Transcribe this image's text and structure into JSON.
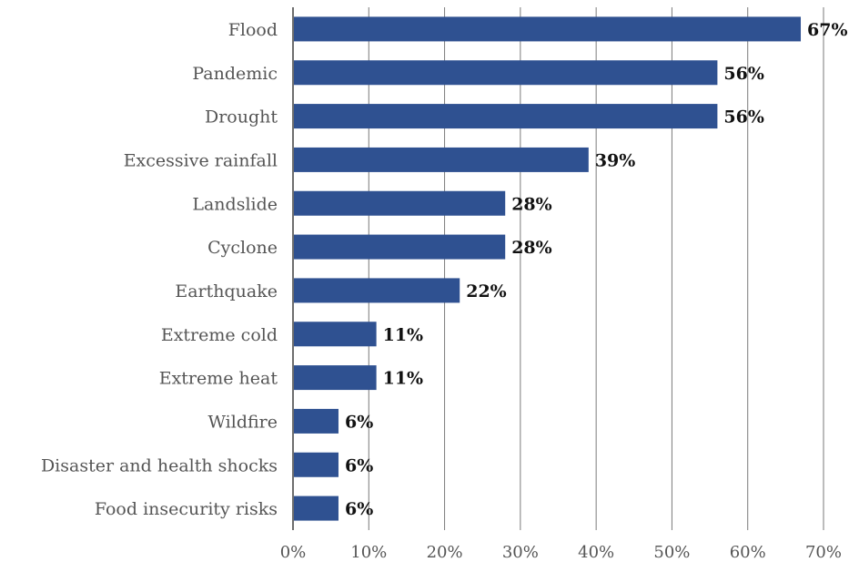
{
  "chart_data": {
    "type": "bar",
    "orientation": "horizontal",
    "title": "",
    "xlabel": "",
    "ylabel": "",
    "categories": [
      "Flood",
      "Pandemic",
      "Drought",
      "Excessive rainfall",
      "Landslide",
      "Cyclone",
      "Earthquake",
      "Extreme cold",
      "Extreme heat",
      "Wildfire",
      "Disaster and health shocks",
      "Food insecurity risks"
    ],
    "values": [
      67,
      56,
      56,
      39,
      28,
      28,
      22,
      11,
      11,
      6,
      6,
      6
    ],
    "data_labels": [
      "67%",
      "56%",
      "56%",
      "39%",
      "28%",
      "28%",
      "22%",
      "11%",
      "11%",
      "6%",
      "6%",
      "6%"
    ],
    "xlim": [
      0,
      70
    ],
    "xticks": [
      0,
      10,
      20,
      30,
      40,
      50,
      60,
      70
    ],
    "xtick_labels": [
      "0%",
      "10%",
      "20%",
      "30%",
      "40%",
      "50%",
      "60%",
      "70%"
    ],
    "grid": "vertical",
    "legend": "none",
    "bar_color": "#2f5191"
  }
}
